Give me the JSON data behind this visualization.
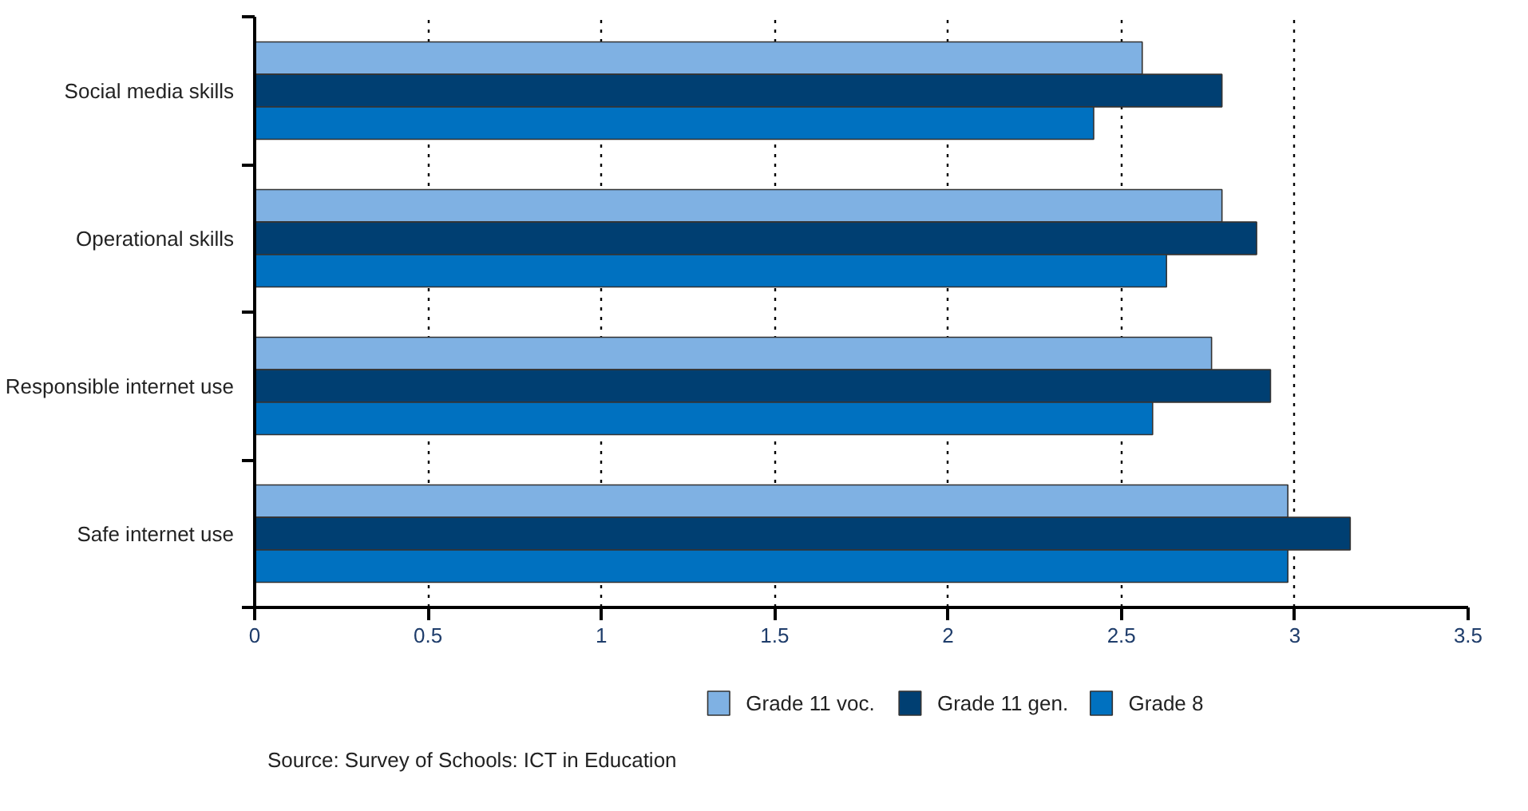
{
  "chart_data": {
    "type": "bar",
    "orientation": "horizontal",
    "categories": [
      "Social media skills",
      "Operational skills",
      "Responsible internet use",
      "Safe internet use"
    ],
    "series": [
      {
        "name": "Grade 11 voc.",
        "color": "#7fb1e3",
        "values": [
          2.56,
          2.79,
          2.76,
          2.98
        ]
      },
      {
        "name": "Grade 11 gen.",
        "color": "#003f72",
        "values": [
          2.79,
          2.89,
          2.93,
          3.16
        ]
      },
      {
        "name": "Grade 8",
        "color": "#0071c0",
        "values": [
          2.42,
          2.63,
          2.59,
          2.98
        ]
      }
    ],
    "xlim": [
      0,
      3.5
    ],
    "xticks": [
      0,
      0.5,
      1,
      1.5,
      2,
      2.5,
      3,
      3.5
    ],
    "grid": "x",
    "legend": "bottom",
    "annotations": [
      "Source: Survey of Schools: ICT in Education"
    ]
  }
}
